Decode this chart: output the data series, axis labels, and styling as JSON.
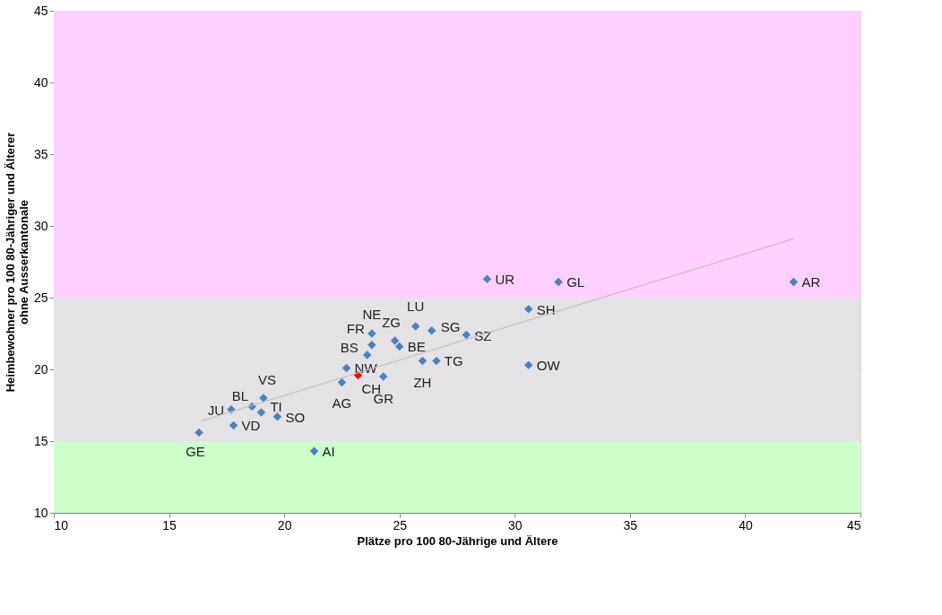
{
  "chart_data": {
    "type": "scatter",
    "xlabel": "Plätze pro 100 80-Jährige und Ältere",
    "ylabel": "Heimbewohner pro 100 80-Jähriger und Älterer\nohne Ausserkantonale",
    "xlim": [
      10,
      45
    ],
    "ylim": [
      10,
      45
    ],
    "xticks": [
      10,
      15,
      20,
      25,
      30,
      35,
      40,
      45
    ],
    "yticks": [
      10,
      15,
      20,
      25,
      30,
      35,
      40,
      45
    ],
    "grid": "y",
    "marker": "diamond",
    "bands": [
      {
        "axis": "y",
        "from": 25,
        "to": 45,
        "color": "#fcd0fc"
      },
      {
        "axis": "y",
        "from": 15,
        "to": 25,
        "color": "#e4e2e4"
      },
      {
        "axis": "y",
        "from": 10,
        "to": 15,
        "color": "#ccffcc"
      }
    ],
    "series": [
      {
        "x": [
          16.3,
          17.7,
          17.8,
          18.6,
          19.0,
          19.1,
          19.7,
          21.3,
          22.5,
          22.7,
          23.2,
          23.6,
          23.8,
          23.8,
          24.8,
          25.0,
          24.3,
          25.7,
          26.4,
          27.9,
          26.0,
          26.6,
          28.8,
          30.6,
          30.6,
          31.9,
          42.1
        ],
        "values": [
          15.6,
          17.2,
          16.1,
          17.4,
          17.0,
          18.0,
          16.7,
          14.3,
          19.1,
          20.1,
          19.6,
          21.0,
          21.7,
          22.5,
          22.0,
          21.6,
          19.5,
          23.0,
          22.7,
          22.4,
          20.6,
          20.6,
          26.3,
          24.2,
          20.3,
          26.1,
          26.1
        ],
        "value_labels": [
          "GE",
          "JU",
          "VD",
          "BL",
          "TI",
          "VS",
          "SO",
          "AI",
          "AG",
          "NW",
          "CH",
          "BS",
          "FR",
          "NE",
          "ZG",
          "BE",
          "GR",
          "LU",
          "SG",
          "SZ",
          "ZH",
          "TG",
          "UR",
          "SH",
          "OW",
          "GL",
          "AR"
        ],
        "colors": [
          "#4f81bd",
          "#4f81bd",
          "#4f81bd",
          "#4f81bd",
          "#4f81bd",
          "#4f81bd",
          "#4f81bd",
          "#4f81bd",
          "#4f81bd",
          "#4f81bd",
          "#ff0000",
          "#4f81bd",
          "#4f81bd",
          "#4f81bd",
          "#4f81bd",
          "#4f81bd",
          "#4f81bd",
          "#4f81bd",
          "#4f81bd",
          "#4f81bd",
          "#4f81bd",
          "#4f81bd",
          "#4f81bd",
          "#4f81bd",
          "#4f81bd",
          "#4f81bd",
          "#4f81bd"
        ]
      },
      {
        "type": "line",
        "x": [
          16.4,
          42.1
        ],
        "values": [
          16.4,
          29.1
        ],
        "color": "#c8b8c8",
        "line_style": "solid",
        "marker": "none"
      }
    ]
  }
}
